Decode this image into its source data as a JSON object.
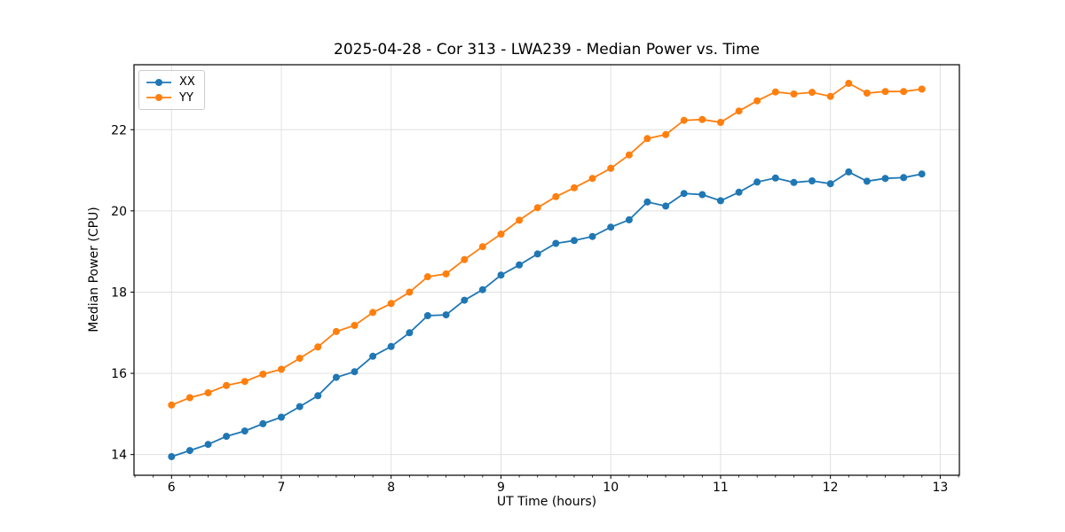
{
  "figure": {
    "background_color": "#ffffff"
  },
  "chart_data": {
    "type": "line",
    "title": "2025-04-28 - Cor 313 - LWA239 - Median Power vs. Time",
    "xlabel": "UT Time (hours)",
    "ylabel": "Median Power (CPU)",
    "grid": true,
    "grid_color": "#e0e0e0",
    "axis_color": "#000000",
    "legend_position": "upper left",
    "xticks": [
      6,
      7,
      8,
      9,
      10,
      11,
      12,
      13
    ],
    "yticks": [
      14,
      16,
      18,
      20,
      22
    ],
    "x_minor_tick_step": 0.1667,
    "xlim": [
      5.66,
      13.17
    ],
    "ylim": [
      13.49,
      23.6
    ],
    "x": [
      6.0,
      6.167,
      6.333,
      6.5,
      6.667,
      6.833,
      7.0,
      7.167,
      7.333,
      7.5,
      7.667,
      7.833,
      8.0,
      8.167,
      8.333,
      8.5,
      8.667,
      8.833,
      9.0,
      9.167,
      9.333,
      9.5,
      9.667,
      9.833,
      10.0,
      10.167,
      10.333,
      10.5,
      10.667,
      10.833,
      11.0,
      11.167,
      11.333,
      11.5,
      11.667,
      11.833,
      12.0,
      12.167,
      12.333,
      12.5,
      12.667,
      12.833
    ],
    "series": [
      {
        "name": "XX",
        "color": "#1f77b4",
        "marker": "circle",
        "values": [
          13.95,
          14.1,
          14.25,
          14.45,
          14.58,
          14.76,
          14.92,
          15.18,
          15.45,
          15.9,
          16.04,
          16.42,
          16.66,
          17.0,
          17.42,
          17.44,
          17.8,
          18.06,
          18.42,
          18.67,
          18.94,
          19.2,
          19.27,
          19.37,
          19.6,
          19.78,
          20.22,
          20.12,
          20.43,
          20.4,
          20.25,
          20.46,
          20.71,
          20.81,
          20.7,
          20.74,
          20.67,
          20.96,
          20.73,
          20.8,
          20.82,
          20.91
        ]
      },
      {
        "name": "YY",
        "color": "#ff7f0e",
        "marker": "circle",
        "values": [
          15.22,
          15.4,
          15.52,
          15.7,
          15.8,
          15.98,
          16.1,
          16.37,
          16.65,
          17.03,
          17.18,
          17.5,
          17.72,
          18.0,
          18.38,
          18.45,
          18.8,
          19.12,
          19.43,
          19.77,
          20.08,
          20.35,
          20.57,
          20.8,
          21.05,
          21.38,
          21.78,
          21.88,
          22.23,
          22.25,
          22.18,
          22.46,
          22.71,
          22.93,
          22.88,
          22.92,
          22.82,
          23.14,
          22.9,
          22.94,
          22.94,
          23.0
        ]
      }
    ]
  }
}
